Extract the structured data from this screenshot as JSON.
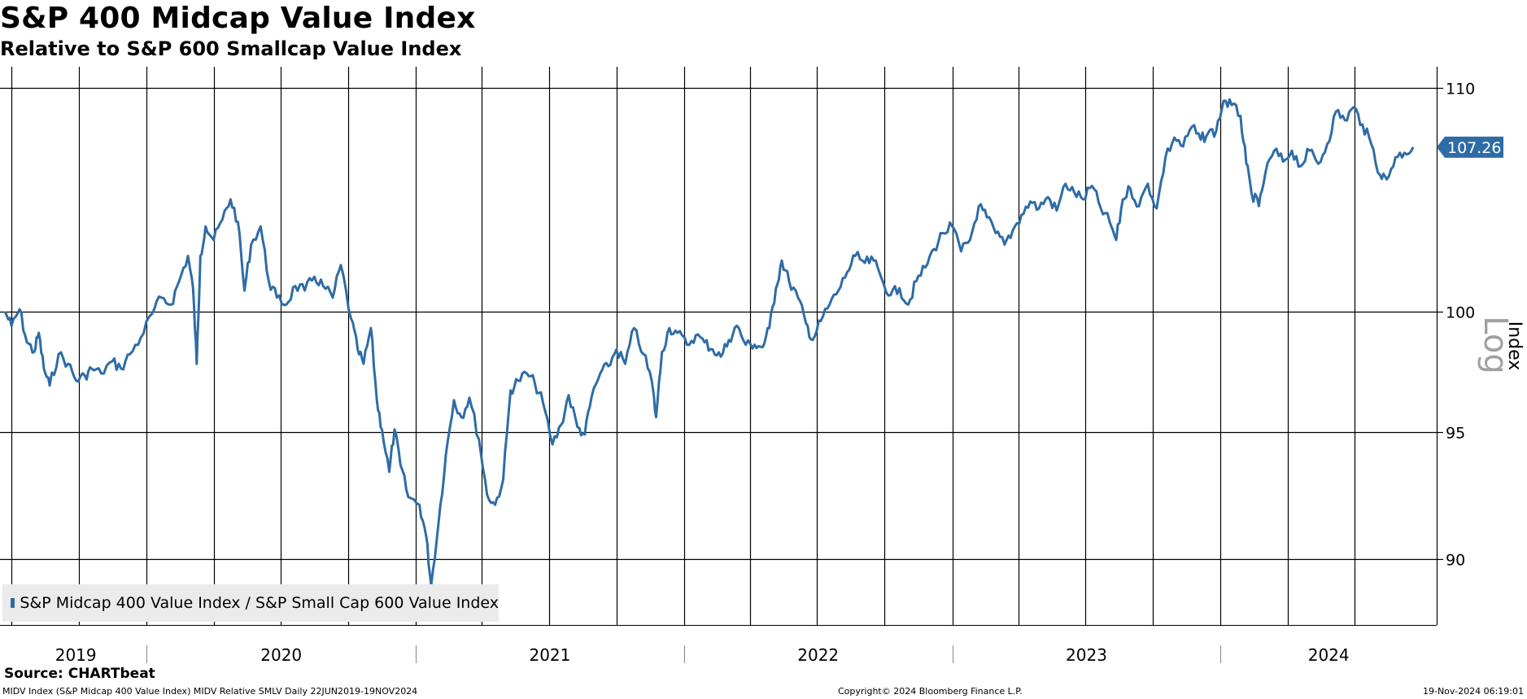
{
  "header": {
    "title": "S&P 400 Midcap Value Index",
    "subtitle": "Relative to S&P 600 Smallcap Value Index"
  },
  "legend": {
    "label": "S&P Midcap 400 Value Index / S&P Small Cap 600 Value Index"
  },
  "source": "Source: CHARTbeat",
  "footer": {
    "left": "MIDV Index (S&P Midcap 400 Value Index) MIDV Relative SMLV  Daily 22JUN2019-19NOV2024",
    "center": "Copyright© 2024 Bloomberg Finance L.P.",
    "right": "19-Nov-2024 06:19:01"
  },
  "colors": {
    "line": "#2e6ca6",
    "last_tag": "#2e6ca6",
    "grid": "#000000",
    "legend_bg": "#ebebeb",
    "log_label": "#a0a0a0"
  },
  "chart_data": {
    "type": "line",
    "y_scale": "log",
    "ylim": [
      87.5,
      111
    ],
    "yticks": [
      90,
      95,
      100,
      110
    ],
    "ylabel": "Index",
    "scale_label": "Log",
    "grid": true,
    "legend_position": "bottom-left",
    "x_labels": [
      "2019",
      "2020",
      "2021",
      "2022",
      "2023",
      "2024"
    ],
    "last_value_label": "107.26",
    "series": [
      {
        "name": "S&P Midcap 400 Value Index / S&P Small Cap 600 Value Index",
        "points": [
          [
            "2019-06-22",
            100.0
          ],
          [
            "2019-07-01",
            99.4
          ],
          [
            "2019-07-12",
            100.1
          ],
          [
            "2019-07-22",
            98.7
          ],
          [
            "2019-08-01",
            98.3
          ],
          [
            "2019-08-07",
            99.1
          ],
          [
            "2019-08-14",
            97.6
          ],
          [
            "2019-08-22",
            96.9
          ],
          [
            "2019-09-03",
            98.2
          ],
          [
            "2019-09-16",
            97.8
          ],
          [
            "2019-09-27",
            97.1
          ],
          [
            "2019-10-09",
            97.3
          ],
          [
            "2019-10-18",
            97.6
          ],
          [
            "2019-10-31",
            97.4
          ],
          [
            "2019-11-15",
            97.9
          ],
          [
            "2019-11-27",
            97.6
          ],
          [
            "2019-12-09",
            98.2
          ],
          [
            "2019-12-24",
            98.9
          ],
          [
            "2020-01-08",
            99.9
          ],
          [
            "2020-01-21",
            100.6
          ],
          [
            "2020-02-03",
            100.3
          ],
          [
            "2020-02-14",
            101.3
          ],
          [
            "2020-02-26",
            102.4
          ],
          [
            "2020-03-04",
            101.0
          ],
          [
            "2020-03-09",
            97.8
          ],
          [
            "2020-03-14",
            102.4
          ],
          [
            "2020-03-21",
            103.7
          ],
          [
            "2020-04-01",
            103.1
          ],
          [
            "2020-04-13",
            104.0
          ],
          [
            "2020-04-24",
            104.9
          ],
          [
            "2020-05-04",
            103.9
          ],
          [
            "2020-05-13",
            100.9
          ],
          [
            "2020-05-22",
            102.9
          ],
          [
            "2020-06-04",
            103.7
          ],
          [
            "2020-06-15",
            101.3
          ],
          [
            "2020-06-26",
            100.6
          ],
          [
            "2020-07-09",
            100.3
          ],
          [
            "2020-07-21",
            101.1
          ],
          [
            "2020-08-03",
            100.9
          ],
          [
            "2020-08-16",
            101.5
          ],
          [
            "2020-08-28",
            101.1
          ],
          [
            "2020-09-10",
            100.6
          ],
          [
            "2020-09-21",
            102.0
          ],
          [
            "2020-10-05",
            99.7
          ],
          [
            "2020-10-14",
            98.4
          ],
          [
            "2020-10-22",
            97.8
          ],
          [
            "2020-11-01",
            99.3
          ],
          [
            "2020-11-09",
            96.3
          ],
          [
            "2020-11-16",
            95.1
          ],
          [
            "2020-11-26",
            93.4
          ],
          [
            "2020-12-03",
            95.1
          ],
          [
            "2020-12-11",
            93.7
          ],
          [
            "2020-12-22",
            92.4
          ],
          [
            "2021-01-06",
            92.1
          ],
          [
            "2021-01-15",
            90.9
          ],
          [
            "2021-01-22",
            89.0
          ],
          [
            "2021-02-01",
            91.4
          ],
          [
            "2021-02-11",
            94.1
          ],
          [
            "2021-02-22",
            96.3
          ],
          [
            "2021-03-04",
            95.6
          ],
          [
            "2021-03-15",
            96.4
          ],
          [
            "2021-03-28",
            94.7
          ],
          [
            "2021-04-08",
            92.5
          ],
          [
            "2021-04-19",
            92.1
          ],
          [
            "2021-04-30",
            93.1
          ],
          [
            "2021-05-10",
            96.7
          ],
          [
            "2021-05-20",
            97.1
          ],
          [
            "2021-06-01",
            97.4
          ],
          [
            "2021-06-12",
            97.0
          ],
          [
            "2021-06-23",
            96.2
          ],
          [
            "2021-07-06",
            94.5
          ],
          [
            "2021-07-18",
            95.3
          ],
          [
            "2021-07-28",
            96.5
          ],
          [
            "2021-08-09",
            95.2
          ],
          [
            "2021-08-19",
            94.9
          ],
          [
            "2021-08-28",
            96.4
          ],
          [
            "2021-09-09",
            97.4
          ],
          [
            "2021-09-20",
            97.7
          ],
          [
            "2021-10-01",
            98.4
          ],
          [
            "2021-10-13",
            97.8
          ],
          [
            "2021-10-25",
            99.3
          ],
          [
            "2021-11-07",
            98.2
          ],
          [
            "2021-11-18",
            97.1
          ],
          [
            "2021-11-24",
            95.6
          ],
          [
            "2021-12-02",
            98.3
          ],
          [
            "2021-12-12",
            99.3
          ],
          [
            "2021-12-23",
            99.1
          ],
          [
            "2022-01-05",
            98.6
          ],
          [
            "2022-01-17",
            99.0
          ],
          [
            "2022-01-29",
            98.7
          ],
          [
            "2022-02-09",
            98.4
          ],
          [
            "2022-02-20",
            98.1
          ],
          [
            "2022-03-03",
            98.8
          ],
          [
            "2022-03-14",
            99.4
          ],
          [
            "2022-03-26",
            98.6
          ],
          [
            "2022-04-07",
            98.6
          ],
          [
            "2022-04-18",
            98.5
          ],
          [
            "2022-04-27",
            99.3
          ],
          [
            "2022-05-06",
            101.0
          ],
          [
            "2022-05-14",
            102.2
          ],
          [
            "2022-05-24",
            101.3
          ],
          [
            "2022-06-05",
            100.6
          ],
          [
            "2022-06-16",
            99.5
          ],
          [
            "2022-06-25",
            98.8
          ],
          [
            "2022-07-06",
            99.6
          ],
          [
            "2022-07-18",
            100.3
          ],
          [
            "2022-07-30",
            100.9
          ],
          [
            "2022-08-11",
            101.7
          ],
          [
            "2022-08-22",
            102.4
          ],
          [
            "2022-09-04",
            102.1
          ],
          [
            "2022-09-16",
            102.2
          ],
          [
            "2022-09-27",
            101.4
          ],
          [
            "2022-10-09",
            100.7
          ],
          [
            "2022-10-21",
            101.0
          ],
          [
            "2022-11-02",
            100.3
          ],
          [
            "2022-11-13",
            101.3
          ],
          [
            "2022-11-25",
            101.9
          ],
          [
            "2022-12-07",
            102.7
          ],
          [
            "2022-12-19",
            103.4
          ],
          [
            "2023-01-01",
            103.7
          ],
          [
            "2023-01-13",
            102.6
          ],
          [
            "2023-01-25",
            103.1
          ],
          [
            "2023-02-06",
            104.6
          ],
          [
            "2023-02-17",
            104.1
          ],
          [
            "2023-03-01",
            103.4
          ],
          [
            "2023-03-13",
            102.9
          ],
          [
            "2023-03-24",
            103.5
          ],
          [
            "2023-04-05",
            104.2
          ],
          [
            "2023-04-17",
            104.8
          ],
          [
            "2023-04-29",
            104.5
          ],
          [
            "2023-05-11",
            105.0
          ],
          [
            "2023-05-23",
            104.4
          ],
          [
            "2023-06-04",
            105.6
          ],
          [
            "2023-06-16",
            105.2
          ],
          [
            "2023-06-28",
            104.9
          ],
          [
            "2023-07-10",
            105.5
          ],
          [
            "2023-07-22",
            104.5
          ],
          [
            "2023-08-03",
            103.9
          ],
          [
            "2023-08-12",
            103.1
          ],
          [
            "2023-08-21",
            104.9
          ],
          [
            "2023-08-31",
            105.4
          ],
          [
            "2023-09-12",
            104.6
          ],
          [
            "2023-09-24",
            105.6
          ],
          [
            "2023-10-06",
            104.5
          ],
          [
            "2023-10-18",
            106.8
          ],
          [
            "2023-10-30",
            107.7
          ],
          [
            "2023-11-11",
            107.3
          ],
          [
            "2023-11-23",
            108.2
          ],
          [
            "2023-12-05",
            107.6
          ],
          [
            "2023-12-15",
            107.9
          ],
          [
            "2023-12-26",
            108.0
          ],
          [
            "2024-01-05",
            109.4
          ],
          [
            "2024-01-16",
            109.2
          ],
          [
            "2024-01-28",
            108.7
          ],
          [
            "2024-02-05",
            106.5
          ],
          [
            "2024-02-12",
            105.2
          ],
          [
            "2024-02-22",
            104.6
          ],
          [
            "2024-03-02",
            106.1
          ],
          [
            "2024-03-14",
            107.1
          ],
          [
            "2024-03-26",
            106.6
          ],
          [
            "2024-04-07",
            107.1
          ],
          [
            "2024-04-19",
            106.4
          ],
          [
            "2024-05-01",
            107.1
          ],
          [
            "2024-05-13",
            106.5
          ],
          [
            "2024-05-25",
            107.4
          ],
          [
            "2024-06-06",
            108.9
          ],
          [
            "2024-06-18",
            108.5
          ],
          [
            "2024-06-30",
            109.1
          ],
          [
            "2024-07-12",
            108.3
          ],
          [
            "2024-07-24",
            107.4
          ],
          [
            "2024-08-05",
            106.0
          ],
          [
            "2024-08-14",
            105.8
          ],
          [
            "2024-08-26",
            106.8
          ],
          [
            "2024-09-07",
            107.0
          ],
          [
            "2024-09-19",
            107.26
          ]
        ]
      }
    ]
  }
}
